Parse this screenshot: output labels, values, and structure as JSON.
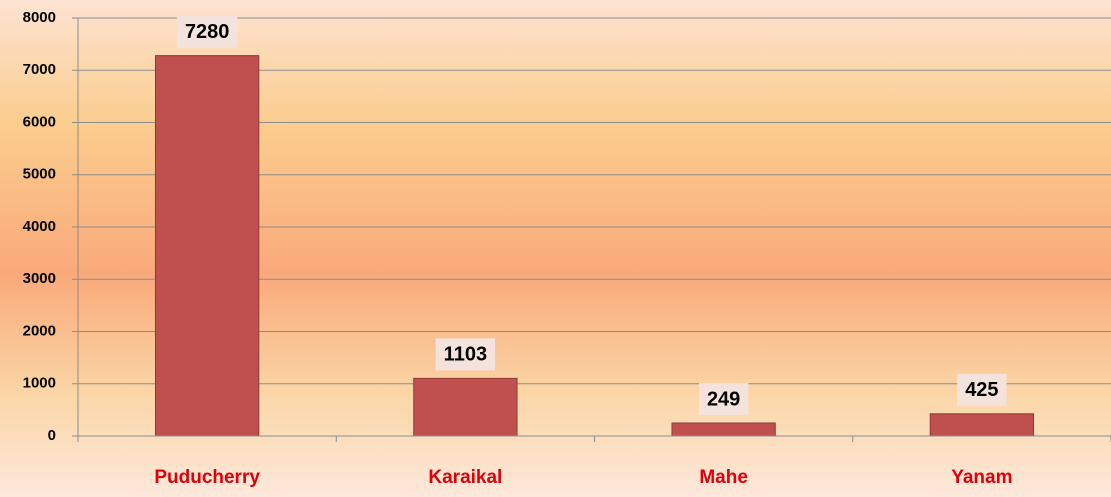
{
  "chart_data": {
    "type": "bar",
    "categories": [
      "Puducherry",
      "Karaikal",
      "Mahe",
      "Yanam"
    ],
    "values": [
      7280,
      1103,
      249,
      425
    ],
    "color": "#c0504d",
    "ylim": [
      0,
      8000
    ],
    "yticks": [
      0,
      1000,
      2000,
      3000,
      4000,
      5000,
      6000,
      7000,
      8000
    ],
    "grid": true
  }
}
